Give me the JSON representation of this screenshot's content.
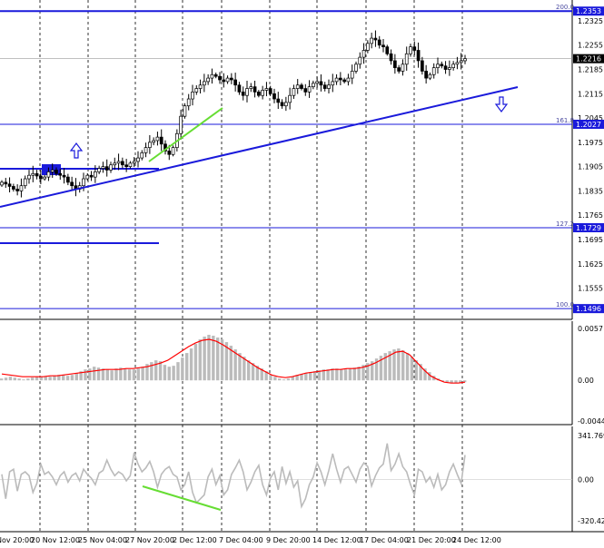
{
  "chart_data": [
    {
      "type": "candlestick",
      "ylim": [
        1.1465,
        1.2385
      ],
      "y_ticks": [
        "1.2325",
        "1.2255",
        "1.2185",
        "1.2115",
        "1.2045",
        "1.1975",
        "1.1905",
        "1.1835",
        "1.1765",
        "1.1695",
        "1.1625",
        "1.1555"
      ],
      "x_labels": [
        "Nov 20:00",
        "20 Nov 12:00",
        "25 Nov 04:00",
        "27 Nov 20:00",
        "2 Dec 12:00",
        "7 Dec 04:00",
        "9 Dec 20:00",
        "14 Dec 12:00",
        "17 Dec 04:00",
        "21 Dec 20:00",
        "24 Dec 12:00"
      ],
      "price_series": [
        1.186,
        1.1855,
        1.1848,
        1.184,
        1.1835,
        1.185,
        1.187,
        1.188,
        1.1885,
        1.1878,
        1.187,
        1.1875,
        1.189,
        1.1895,
        1.1885,
        1.188,
        1.1875,
        1.186,
        1.185,
        1.184,
        1.185,
        1.187,
        1.188,
        1.1875,
        1.189,
        1.19,
        1.1905,
        1.1895,
        1.191,
        1.1915,
        1.192,
        1.191,
        1.1905,
        1.1915,
        1.192,
        1.193,
        1.1945,
        1.196,
        1.1975,
        1.198,
        1.199,
        1.197,
        1.195,
        1.194,
        1.196,
        1.2,
        1.205,
        1.208,
        1.21,
        1.212,
        1.213,
        1.214,
        1.215,
        1.216,
        1.217,
        1.2165,
        1.2155,
        1.215,
        1.216,
        1.2155,
        1.214,
        1.212,
        1.211,
        1.213,
        1.2135,
        1.212,
        1.211,
        1.2125,
        1.213,
        1.2115,
        1.21,
        1.209,
        1.208,
        1.209,
        1.211,
        1.213,
        1.214,
        1.213,
        1.212,
        1.2135,
        1.2145,
        1.215,
        1.214,
        1.213,
        1.214,
        1.215,
        1.216,
        1.2155,
        1.215,
        1.216,
        1.218,
        1.22,
        1.222,
        1.224,
        1.226,
        1.2275,
        1.227,
        1.2255,
        1.225,
        1.223,
        1.221,
        1.219,
        1.218,
        1.22,
        1.223,
        1.225,
        1.224,
        1.221,
        1.218,
        1.216,
        1.217,
        1.219,
        1.22,
        1.2195,
        1.2185,
        1.219,
        1.22,
        1.2205,
        1.221,
        1.2216
      ],
      "levels": [
        {
          "label": "200.0",
          "tag": "1.2353",
          "value": 1.2353
        },
        {
          "label": "161.8",
          "tag": "1.2027",
          "value": 1.2027
        },
        {
          "label": "127.2",
          "tag": "1.1729",
          "value": 1.1729
        },
        {
          "label": "100.0",
          "tag": "1.1496",
          "value": 1.1496
        }
      ],
      "current_price": "1.2216",
      "colors": {
        "levels": "#1a1adb",
        "trendline": "#1a1adb",
        "divergence": "#66dd33",
        "tag_bg": "#1a1adb",
        "candles": "#000000"
      }
    },
    {
      "type": "bar",
      "indicator": "MACD",
      "ylim": [
        -0.00446,
        0.0057
      ],
      "y_ticks": [
        "0.0057",
        "0.00",
        "-0.00446"
      ],
      "histogram": [
        0.0002,
        0.0003,
        0.0004,
        0.0003,
        0.0002,
        0.0001,
        0.0002,
        0.0003,
        0.0004,
        0.0004,
        0.0004,
        0.0004,
        0.0005,
        0.0006,
        0.0006,
        0.0005,
        0.0006,
        0.0008,
        0.001,
        0.0012,
        0.0013,
        0.0015,
        0.0014,
        0.0013,
        0.0012,
        0.0011,
        0.0013,
        0.0014,
        0.0013,
        0.0012,
        0.0012,
        0.0013,
        0.0015,
        0.0018,
        0.002,
        0.0022,
        0.0021,
        0.0017,
        0.0015,
        0.0016,
        0.002,
        0.0025,
        0.003,
        0.0035,
        0.004,
        0.0045,
        0.0048,
        0.005,
        0.0049,
        0.0047,
        0.0045,
        0.0042,
        0.0038,
        0.0034,
        0.003,
        0.0026,
        0.0022,
        0.0019,
        0.0016,
        0.0013,
        0.001,
        0.0006,
        0.0004,
        0.0002,
        0.0001,
        0.0002,
        0.0004,
        0.0006,
        0.0007,
        0.0008,
        0.0009,
        0.001,
        0.0011,
        0.0012,
        0.0012,
        0.0013,
        0.0013,
        0.0012,
        0.0012,
        0.0013,
        0.0014,
        0.0015,
        0.0017,
        0.0019,
        0.0021,
        0.0024,
        0.0027,
        0.003,
        0.0032,
        0.0034,
        0.0035,
        0.0033,
        0.003,
        0.0026,
        0.0022,
        0.0018,
        0.0013,
        0.0009,
        0.0005,
        0.0002,
        -0.0001,
        -0.0002,
        -0.0003,
        -0.0003,
        -0.0003,
        -0.0002
      ],
      "signal": [
        0.0007,
        0.0006,
        0.0005,
        0.0004,
        0.0004,
        0.0004,
        0.0004,
        0.0005,
        0.0005,
        0.0006,
        0.0007,
        0.0008,
        0.0009,
        0.001,
        0.0011,
        0.0012,
        0.0012,
        0.0012,
        0.0013,
        0.0013,
        0.0014,
        0.0015,
        0.0017,
        0.0019,
        0.0022,
        0.0027,
        0.0032,
        0.0037,
        0.0041,
        0.0044,
        0.0045,
        0.0043,
        0.0039,
        0.0034,
        0.0029,
        0.0024,
        0.0019,
        0.0014,
        0.001,
        0.0006,
        0.0004,
        0.0003,
        0.0004,
        0.0006,
        0.0008,
        0.0009,
        0.001,
        0.0011,
        0.0012,
        0.0012,
        0.0013,
        0.0013,
        0.0014,
        0.0016,
        0.0019,
        0.0023,
        0.0027,
        0.0031,
        0.0032,
        0.0028,
        0.002,
        0.0012,
        0.0005,
        0.0001,
        -0.0002,
        -0.0003,
        -0.0003,
        -0.0002
      ],
      "colors": {
        "histogram": "#bbbbbb",
        "signal": "#ff0000"
      }
    },
    {
      "type": "line",
      "indicator": "CCI",
      "ylim": [
        -320.422,
        341.7693
      ],
      "y_ticks": [
        "341.7693",
        "0.00",
        "-320.422"
      ],
      "values": [
        40,
        -150,
        60,
        80,
        -90,
        40,
        60,
        30,
        -100,
        -30,
        120,
        40,
        60,
        20,
        -40,
        30,
        60,
        -20,
        30,
        50,
        -10,
        80,
        40,
        10,
        -40,
        50,
        70,
        150,
        80,
        30,
        60,
        40,
        -10,
        30,
        210,
        120,
        60,
        90,
        140,
        60,
        -60,
        40,
        80,
        100,
        40,
        20,
        -80,
        -40,
        60,
        -100,
        -180,
        -150,
        -120,
        20,
        80,
        -40,
        30,
        -120,
        -80,
        40,
        90,
        150,
        60,
        -80,
        -20,
        60,
        110,
        -40,
        -120,
        10,
        60,
        -80,
        100,
        -30,
        60,
        -60,
        -10,
        -210,
        -150,
        -40,
        20,
        130,
        60,
        -40,
        70,
        200,
        80,
        -20,
        80,
        100,
        40,
        -20,
        80,
        130,
        100,
        -50,
        30,
        90,
        120,
        280,
        70,
        120,
        200,
        100,
        60,
        -40,
        -120,
        80,
        60,
        -20,
        20,
        -60,
        40,
        -80,
        -40,
        60,
        120,
        40,
        -30,
        190
      ]
    }
  ]
}
